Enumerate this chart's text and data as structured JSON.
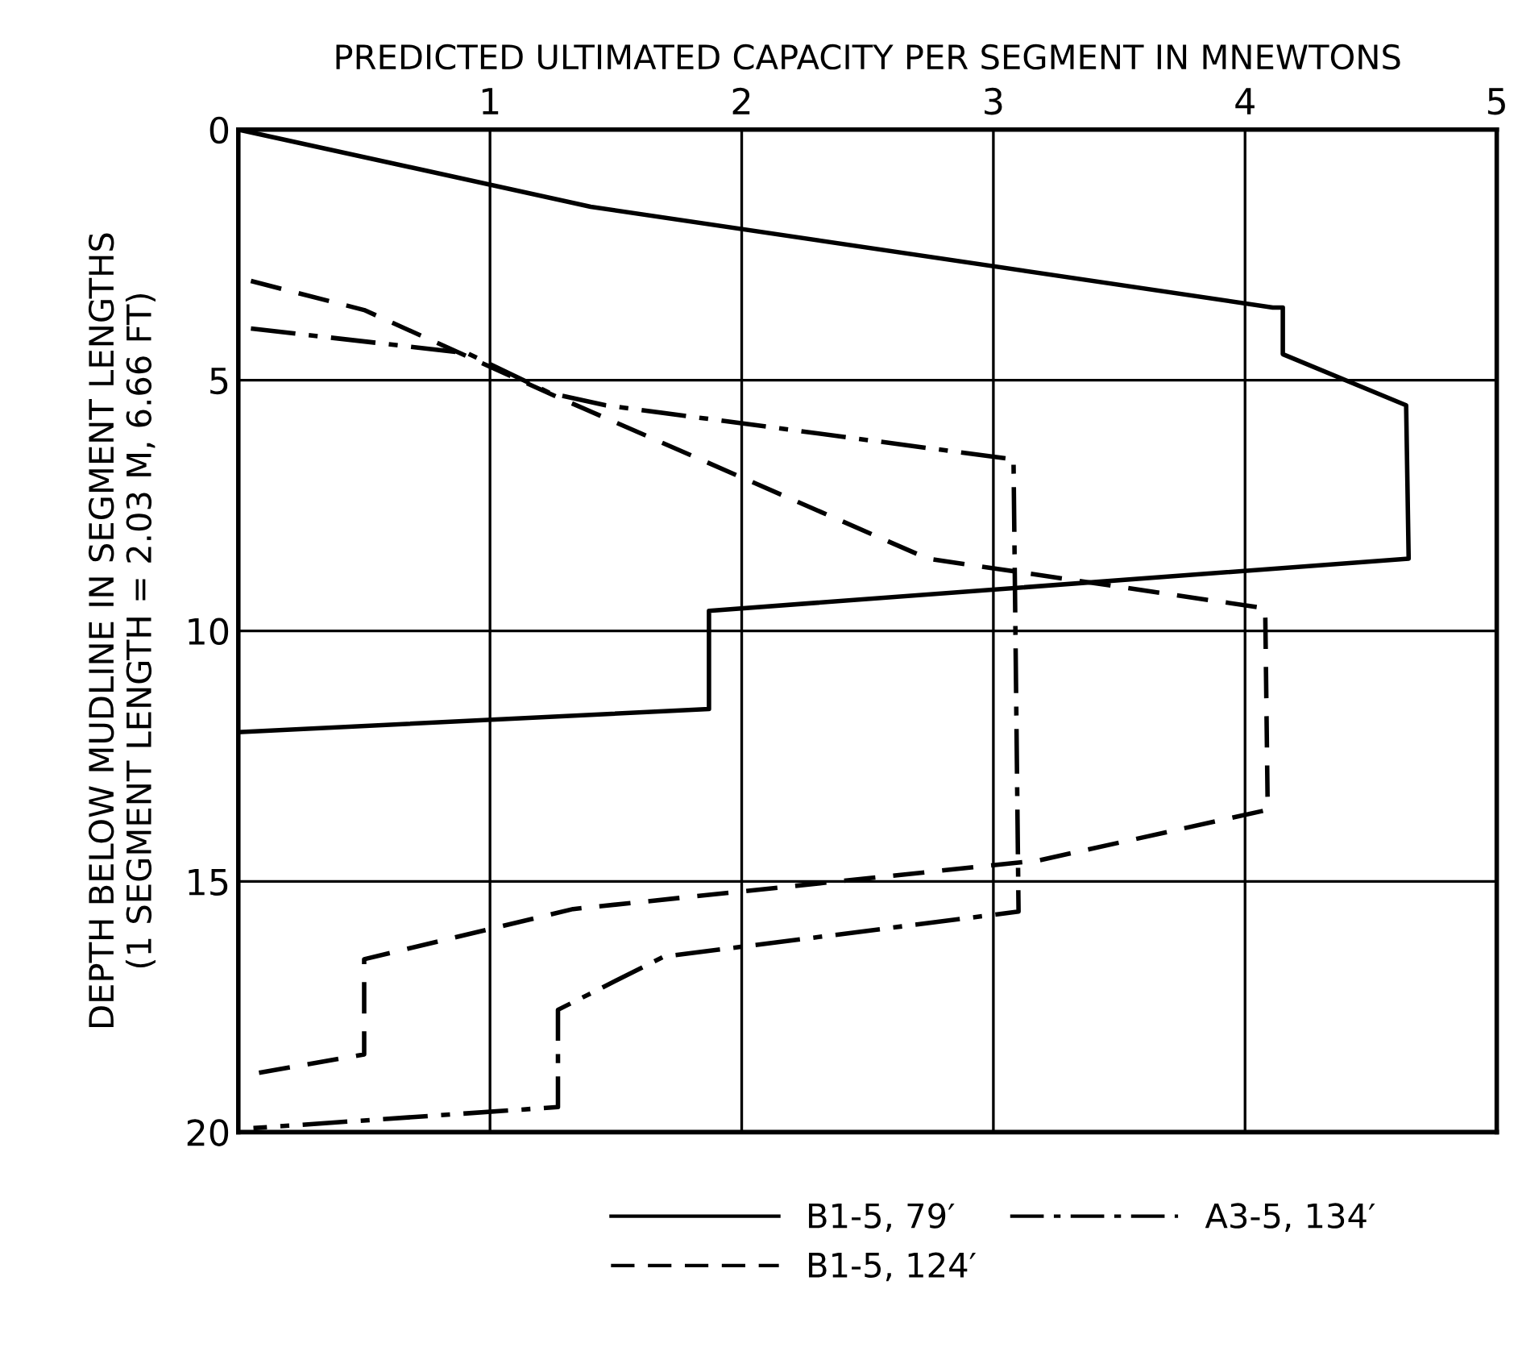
{
  "chart_data": {
    "type": "line",
    "xlabel": "PREDICTED ULTIMATED CAPACITY PER SEGMENT IN MNEWTONS",
    "ylabel": "DEPTH BELOW MUDLINE IN SEGMENT LENGTHS\n(1 SEGMENT LENGTH = 2.03 M, 6.66 FT)",
    "xlim": [
      0,
      5
    ],
    "xticks": [
      1,
      2,
      3,
      4,
      5
    ],
    "ylim": [
      20,
      0
    ],
    "yticks": [
      0,
      5,
      10,
      15,
      20
    ],
    "grid": true,
    "legend": "bottom",
    "series": [
      {
        "name": "B1-5, 79′",
        "color": "#000000",
        "line_style": "solid",
        "x": [
          0,
          1.4,
          4.11,
          4.15,
          4.15,
          4.64,
          4.65,
          1.87,
          1.87,
          0
        ],
        "values": [
          0,
          1.54,
          3.55,
          3.55,
          4.48,
          5.5,
          8.56,
          9.6,
          11.56,
          12.02
        ]
      },
      {
        "name": "B1-5, 124′",
        "color": "#000000",
        "line_style": "dashed",
        "x": [
          0.05,
          0.5,
          1.27,
          2.74,
          4.08,
          4.09,
          3.18,
          1.33,
          0.5,
          0.5,
          0.03
        ],
        "values": [
          3.02,
          3.6,
          5.34,
          8.56,
          9.55,
          13.57,
          14.58,
          15.55,
          16.55,
          18.45,
          18.86
        ]
      },
      {
        "name": "A3-5, 134′",
        "color": "#000000",
        "line_style": "dashdot",
        "x": [
          0.05,
          0.91,
          1.24,
          1.46,
          3.08,
          3.1,
          1.69,
          1.27,
          1.27,
          0.06
        ],
        "values": [
          3.97,
          4.46,
          5.26,
          5.5,
          6.58,
          15.6,
          16.5,
          17.56,
          19.5,
          19.92
        ]
      }
    ]
  }
}
